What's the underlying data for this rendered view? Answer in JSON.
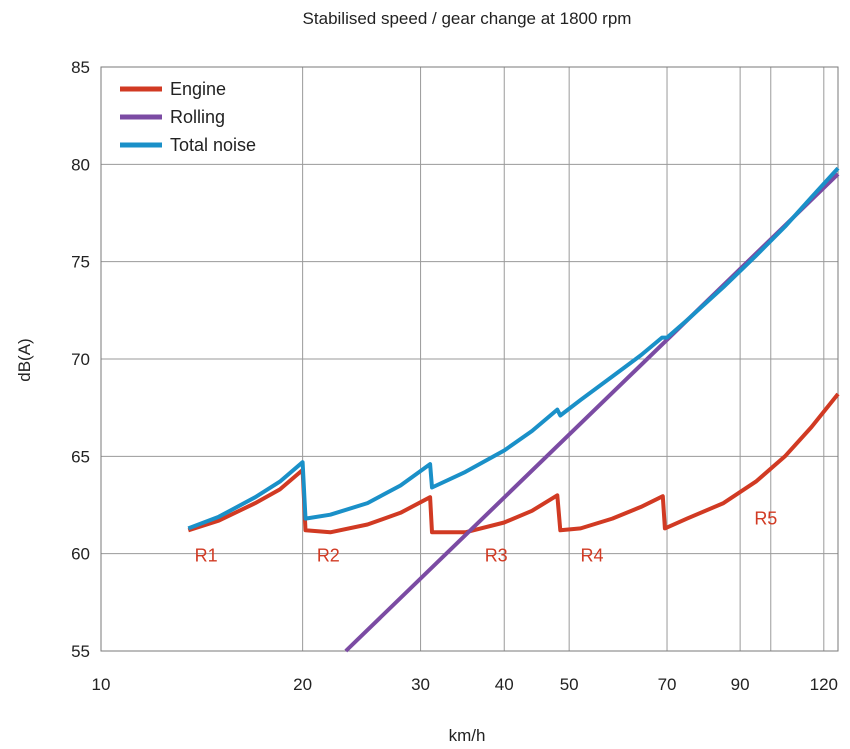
{
  "chart_data": {
    "type": "line",
    "title": "Stabilised speed / gear change at 1800 rpm",
    "xlabel": "km/h",
    "ylabel": "dB(A)",
    "x_scale": "log",
    "xlim": [
      10,
      126
    ],
    "ylim": [
      55,
      85
    ],
    "x_ticks": [
      10,
      20,
      30,
      40,
      50,
      70,
      90,
      120
    ],
    "y_ticks": [
      55,
      60,
      65,
      70,
      75,
      80,
      85
    ],
    "grid": true,
    "legend": "top-left",
    "colors": {
      "engine": "#d13a23",
      "rolling": "#7b4ba3",
      "total": "#1a90c8",
      "gear_labels": "#d13a23"
    },
    "series": [
      {
        "name": "Engine",
        "color": "#d13a23",
        "x": [
          13.5,
          15,
          17,
          18.5,
          20,
          20.2,
          22,
          25,
          28,
          31,
          31.2,
          35,
          40,
          44,
          48,
          48.5,
          52,
          58,
          64,
          69,
          69.5,
          75,
          85,
          95,
          105,
          115,
          126
        ],
        "y": [
          61.2,
          61.7,
          62.6,
          63.3,
          64.3,
          61.2,
          61.1,
          61.5,
          62.1,
          62.9,
          61.1,
          61.1,
          61.6,
          62.2,
          63.0,
          61.2,
          61.3,
          61.8,
          62.4,
          62.95,
          61.3,
          61.8,
          62.6,
          63.7,
          65.0,
          66.5,
          68.2
        ]
      },
      {
        "name": "Rolling",
        "color": "#7b4ba3",
        "x": [
          23.2,
          126
        ],
        "y": [
          55.0,
          79.5
        ]
      },
      {
        "name": "Total noise",
        "color": "#1a90c8",
        "x": [
          13.5,
          15,
          17,
          18.5,
          20,
          20.2,
          22,
          25,
          28,
          31,
          31.2,
          35,
          40,
          44,
          48,
          48.5,
          52,
          58,
          64,
          68.8,
          70,
          75,
          85,
          95,
          105,
          115,
          126
        ],
        "y": [
          61.3,
          61.9,
          62.9,
          63.7,
          64.7,
          61.8,
          62.0,
          62.6,
          63.5,
          64.6,
          63.4,
          64.2,
          65.3,
          66.3,
          67.4,
          67.1,
          67.9,
          69.1,
          70.2,
          71.1,
          71.1,
          72.0,
          73.7,
          75.3,
          76.8,
          78.3,
          79.8
        ]
      }
    ],
    "annotations": [
      {
        "text": "R1",
        "x": 13.8,
        "y": 59.9
      },
      {
        "text": "R2",
        "x": 21.0,
        "y": 59.9
      },
      {
        "text": "R3",
        "x": 37.4,
        "y": 59.9
      },
      {
        "text": "R4",
        "x": 52.0,
        "y": 59.9
      },
      {
        "text": "R5",
        "x": 94.5,
        "y": 61.8
      }
    ]
  }
}
